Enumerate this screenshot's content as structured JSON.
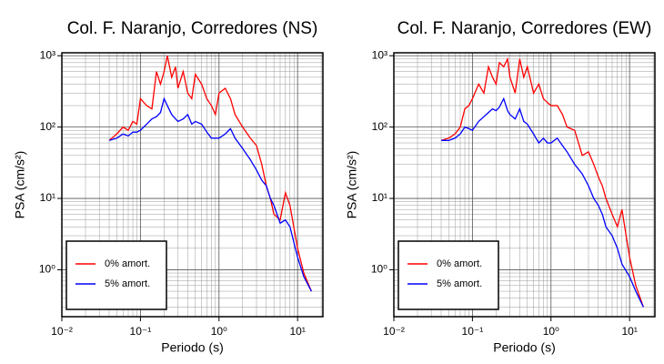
{
  "chart_data": [
    {
      "type": "line",
      "title": "Col. F. Naranjo, Corredores (NS)",
      "x_label": "Periodo (s)",
      "y_label": "PSA (cm/s²)",
      "log_x": true,
      "log_y": true,
      "grid": true,
      "minor_grid": true,
      "legend": "bottom-left",
      "xlim": [
        0.01,
        21
      ],
      "ylim": [
        0.22,
        1100
      ],
      "xticks": [
        {
          "value": 0.01,
          "label": "10⁻²"
        },
        {
          "value": 0.1,
          "label": "10⁻¹"
        },
        {
          "value": 1,
          "label": "10⁰"
        },
        {
          "value": 10,
          "label": "10¹"
        }
      ],
      "yticks": [
        {
          "value": 1,
          "label": "10⁰"
        },
        {
          "value": 10,
          "label": "10¹"
        },
        {
          "value": 100,
          "label": "10²"
        },
        {
          "value": 1000,
          "label": "10³"
        }
      ],
      "x": [
        0.04,
        0.05,
        0.06,
        0.07,
        0.08,
        0.09,
        0.1,
        0.12,
        0.14,
        0.16,
        0.18,
        0.2,
        0.22,
        0.25,
        0.28,
        0.3,
        0.35,
        0.4,
        0.45,
        0.5,
        0.6,
        0.7,
        0.8,
        0.9,
        1,
        1.2,
        1.4,
        1.6,
        2,
        2.5,
        3,
        3.5,
        4,
        4.5,
        5,
        6,
        7,
        8,
        10,
        12,
        15
      ],
      "series": [
        {
          "name": "0% amort.",
          "color": "#ff0000",
          "values": [
            65,
            80,
            100,
            90,
            120,
            110,
            250,
            200,
            180,
            600,
            400,
            600,
            1000,
            500,
            700,
            350,
            600,
            300,
            250,
            550,
            400,
            250,
            200,
            150,
            300,
            350,
            250,
            150,
            100,
            70,
            55,
            30,
            15,
            10,
            6,
            5,
            12,
            8,
            2,
            0.9,
            0.5
          ]
        },
        {
          "name": "5% amort.",
          "color": "#0000ff",
          "values": [
            65,
            70,
            80,
            75,
            85,
            85,
            90,
            110,
            130,
            140,
            160,
            250,
            200,
            150,
            130,
            120,
            130,
            150,
            110,
            120,
            110,
            85,
            70,
            70,
            70,
            80,
            95,
            70,
            50,
            35,
            25,
            18,
            15,
            10,
            8,
            4.5,
            5,
            4,
            1.5,
            0.8,
            0.5
          ]
        }
      ]
    },
    {
      "type": "line",
      "title": "Col. F. Naranjo, Corredores (EW)",
      "x_label": "Periodo (s)",
      "y_label": "PSA (cm/s²)",
      "log_x": true,
      "log_y": true,
      "grid": true,
      "minor_grid": true,
      "legend": "bottom-left",
      "xlim": [
        0.01,
        21
      ],
      "ylim": [
        0.22,
        1100
      ],
      "xticks": [
        {
          "value": 0.01,
          "label": "10⁻²"
        },
        {
          "value": 0.1,
          "label": "10⁻¹"
        },
        {
          "value": 1,
          "label": "10⁰"
        },
        {
          "value": 10,
          "label": "10¹"
        }
      ],
      "yticks": [
        {
          "value": 1,
          "label": "10⁰"
        },
        {
          "value": 10,
          "label": "10¹"
        },
        {
          "value": 100,
          "label": "10²"
        },
        {
          "value": 1000,
          "label": "10³"
        }
      ],
      "x": [
        0.04,
        0.05,
        0.06,
        0.07,
        0.08,
        0.09,
        0.1,
        0.12,
        0.14,
        0.16,
        0.18,
        0.2,
        0.22,
        0.25,
        0.28,
        0.3,
        0.35,
        0.4,
        0.45,
        0.5,
        0.6,
        0.7,
        0.8,
        0.9,
        1,
        1.2,
        1.4,
        1.6,
        2,
        2.5,
        3,
        3.5,
        4,
        4.5,
        5,
        6,
        7,
        8,
        10,
        12,
        15
      ],
      "series": [
        {
          "name": "0% amort.",
          "color": "#ff0000",
          "values": [
            65,
            70,
            80,
            100,
            180,
            200,
            250,
            400,
            300,
            700,
            500,
            400,
            800,
            700,
            900,
            500,
            300,
            900,
            500,
            700,
            300,
            400,
            250,
            220,
            200,
            200,
            150,
            100,
            90,
            40,
            45,
            30,
            20,
            15,
            10,
            6,
            4,
            7,
            1.5,
            0.6,
            0.3
          ]
        },
        {
          "name": "5% amort.",
          "color": "#0000ff",
          "values": [
            65,
            65,
            70,
            80,
            100,
            95,
            90,
            120,
            140,
            160,
            180,
            170,
            190,
            250,
            170,
            150,
            130,
            180,
            120,
            110,
            80,
            60,
            70,
            60,
            60,
            70,
            55,
            45,
            30,
            22,
            15,
            10,
            8,
            6,
            4,
            3,
            2,
            1.2,
            0.8,
            0.5,
            0.3
          ]
        }
      ]
    }
  ]
}
